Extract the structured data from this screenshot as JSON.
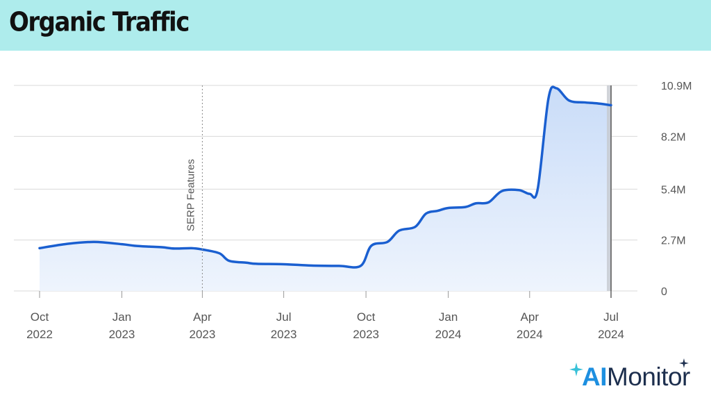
{
  "header": {
    "title": "Organic Traffic"
  },
  "colors": {
    "header_bg": "#aeecec",
    "line": "#1a5fd0",
    "fill": "#dce8fb",
    "grid": "#d9d9d9",
    "annotation": "#888888"
  },
  "chart_data": {
    "type": "area",
    "title": "Organic Traffic",
    "xlabel": "",
    "ylabel": "",
    "y_ticks": [
      {
        "value": 0,
        "label": "0"
      },
      {
        "value": 2.7,
        "label": "2.7M"
      },
      {
        "value": 5.4,
        "label": "5.4M"
      },
      {
        "value": 8.2,
        "label": "8.2M"
      },
      {
        "value": 10.9,
        "label": "10.9M"
      }
    ],
    "ylim": [
      0,
      10.9
    ],
    "y_unit": "M",
    "x_ticks": [
      {
        "date": "2022-10-01",
        "label": [
          "Oct",
          "2022"
        ]
      },
      {
        "date": "2023-01-01",
        "label": [
          "Jan",
          "2023"
        ]
      },
      {
        "date": "2023-04-01",
        "label": [
          "Apr",
          "2023"
        ]
      },
      {
        "date": "2023-07-01",
        "label": [
          "Jul",
          "2023"
        ]
      },
      {
        "date": "2023-10-01",
        "label": [
          "Oct",
          "2023"
        ]
      },
      {
        "date": "2024-01-01",
        "label": [
          "Jan",
          "2024"
        ]
      },
      {
        "date": "2024-04-01",
        "label": [
          "Apr",
          "2024"
        ]
      },
      {
        "date": "2024-07-01",
        "label": [
          "Jul",
          "2024"
        ]
      }
    ],
    "xlim": [
      "2022-10-01",
      "2024-07-01"
    ],
    "annotations": [
      {
        "date": "2023-04-01",
        "label": "SERP Features"
      }
    ],
    "grid": true,
    "series": [
      {
        "values": [
          [
            "2022-10-01",
            2.27
          ],
          [
            "2022-11-01",
            2.5
          ],
          [
            "2022-12-01",
            2.6
          ],
          [
            "2023-01-01",
            2.48
          ],
          [
            "2023-01-15",
            2.4
          ],
          [
            "2023-02-01",
            2.35
          ],
          [
            "2023-02-15",
            2.32
          ],
          [
            "2023-03-01",
            2.25
          ],
          [
            "2023-03-20",
            2.27
          ],
          [
            "2023-04-01",
            2.2
          ],
          [
            "2023-04-20",
            2.0
          ],
          [
            "2023-05-01",
            1.6
          ],
          [
            "2023-05-20",
            1.5
          ],
          [
            "2023-06-01",
            1.44
          ],
          [
            "2023-07-01",
            1.42
          ],
          [
            "2023-08-01",
            1.35
          ],
          [
            "2023-09-01",
            1.33
          ],
          [
            "2023-09-25",
            1.33
          ],
          [
            "2023-10-07",
            2.4
          ],
          [
            "2023-10-25",
            2.6
          ],
          [
            "2023-11-07",
            3.2
          ],
          [
            "2023-11-25",
            3.4
          ],
          [
            "2023-12-07",
            4.1
          ],
          [
            "2023-12-20",
            4.25
          ],
          [
            "2024-01-01",
            4.4
          ],
          [
            "2024-01-20",
            4.45
          ],
          [
            "2024-02-01",
            4.65
          ],
          [
            "2024-02-15",
            4.7
          ],
          [
            "2024-03-01",
            5.3
          ],
          [
            "2024-03-20",
            5.35
          ],
          [
            "2024-04-01",
            5.15
          ],
          [
            "2024-04-10",
            5.4
          ],
          [
            "2024-04-22",
            10.2
          ],
          [
            "2024-05-01",
            10.75
          ],
          [
            "2024-05-15",
            10.1
          ],
          [
            "2024-06-01",
            10.0
          ],
          [
            "2024-06-15",
            9.95
          ],
          [
            "2024-07-01",
            9.85
          ]
        ]
      }
    ]
  },
  "branding": {
    "logo_ai": "AI",
    "logo_rest": "Monitor"
  }
}
